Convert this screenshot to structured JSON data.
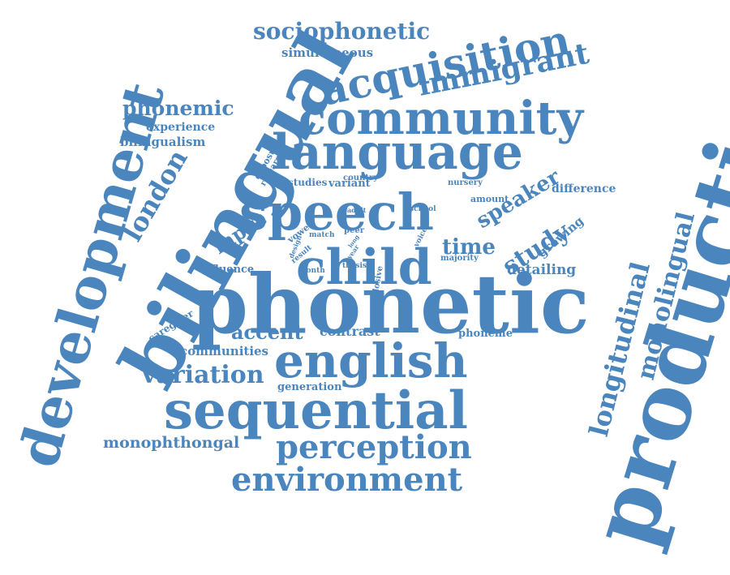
{
  "color": "#4a86bd",
  "words": [
    {
      "text": "production"
    },
    {
      "text": "phonetic"
    },
    {
      "text": "bilingual"
    },
    {
      "text": "development"
    },
    {
      "text": "sequential"
    },
    {
      "text": "speech"
    },
    {
      "text": "language"
    },
    {
      "text": "community"
    },
    {
      "text": "child"
    },
    {
      "text": "english"
    },
    {
      "text": "acquisition"
    },
    {
      "text": "immigrant"
    },
    {
      "text": "environment"
    },
    {
      "text": "perception"
    },
    {
      "text": "longitudinal"
    },
    {
      "text": "monolingual"
    },
    {
      "text": "variation"
    },
    {
      "text": "london"
    },
    {
      "text": "sociophonetic"
    },
    {
      "text": "phonemic"
    },
    {
      "text": "study"
    },
    {
      "text": "speaker"
    },
    {
      "text": "time"
    },
    {
      "text": "accent"
    },
    {
      "text": "monophthongal"
    },
    {
      "text": "input"
    },
    {
      "text": "simultaneous"
    },
    {
      "text": "experience"
    },
    {
      "text": "bilingualism"
    },
    {
      "text": "communities"
    },
    {
      "text": "contrast"
    },
    {
      "text": "detailing"
    },
    {
      "text": "growing"
    },
    {
      "text": "difference"
    },
    {
      "text": "influence"
    },
    {
      "text": "generation"
    },
    {
      "text": "phoneme"
    },
    {
      "text": "caregiver"
    },
    {
      "text": "studies"
    },
    {
      "text": "variant"
    },
    {
      "text": "exposure"
    },
    {
      "text": "research"
    },
    {
      "text": "country"
    },
    {
      "text": "nursery"
    },
    {
      "text": "amount"
    },
    {
      "text": "school"
    },
    {
      "text": "vowel"
    },
    {
      "text": "match"
    },
    {
      "text": "peer"
    },
    {
      "text": "majority"
    },
    {
      "text": "voice"
    },
    {
      "text": "plosive"
    },
    {
      "text": "result"
    },
    {
      "text": "design"
    },
    {
      "text": "month"
    },
    {
      "text": "thesis"
    },
    {
      "text": "year"
    },
    {
      "text": "adult"
    },
    {
      "text": "long"
    }
  ]
}
